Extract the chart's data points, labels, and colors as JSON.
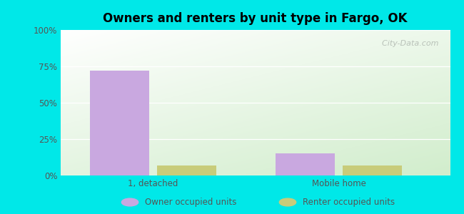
{
  "title": "Owners and renters by unit type in Fargo, OK",
  "categories": [
    "1, detached",
    "Mobile home"
  ],
  "owner_values": [
    72,
    15
  ],
  "renter_values": [
    7,
    7
  ],
  "owner_color": "#c9a8e0",
  "renter_color": "#c8cc7a",
  "owner_label": "Owner occupied units",
  "renter_label": "Renter occupied units",
  "ylim": [
    0,
    100
  ],
  "yticks": [
    0,
    25,
    50,
    75,
    100
  ],
  "ytick_labels": [
    "0%",
    "25%",
    "50%",
    "75%",
    "100%"
  ],
  "bg_color": "#00e8e8",
  "plot_bg_color_top": "#e8f5e0",
  "plot_bg_color_topleft": "#d0edd0",
  "plot_bg_white": "#ffffff",
  "bar_width": 0.32,
  "figsize": [
    6.5,
    3.0
  ],
  "dpi": 100,
  "watermark": "  City-Data.com"
}
